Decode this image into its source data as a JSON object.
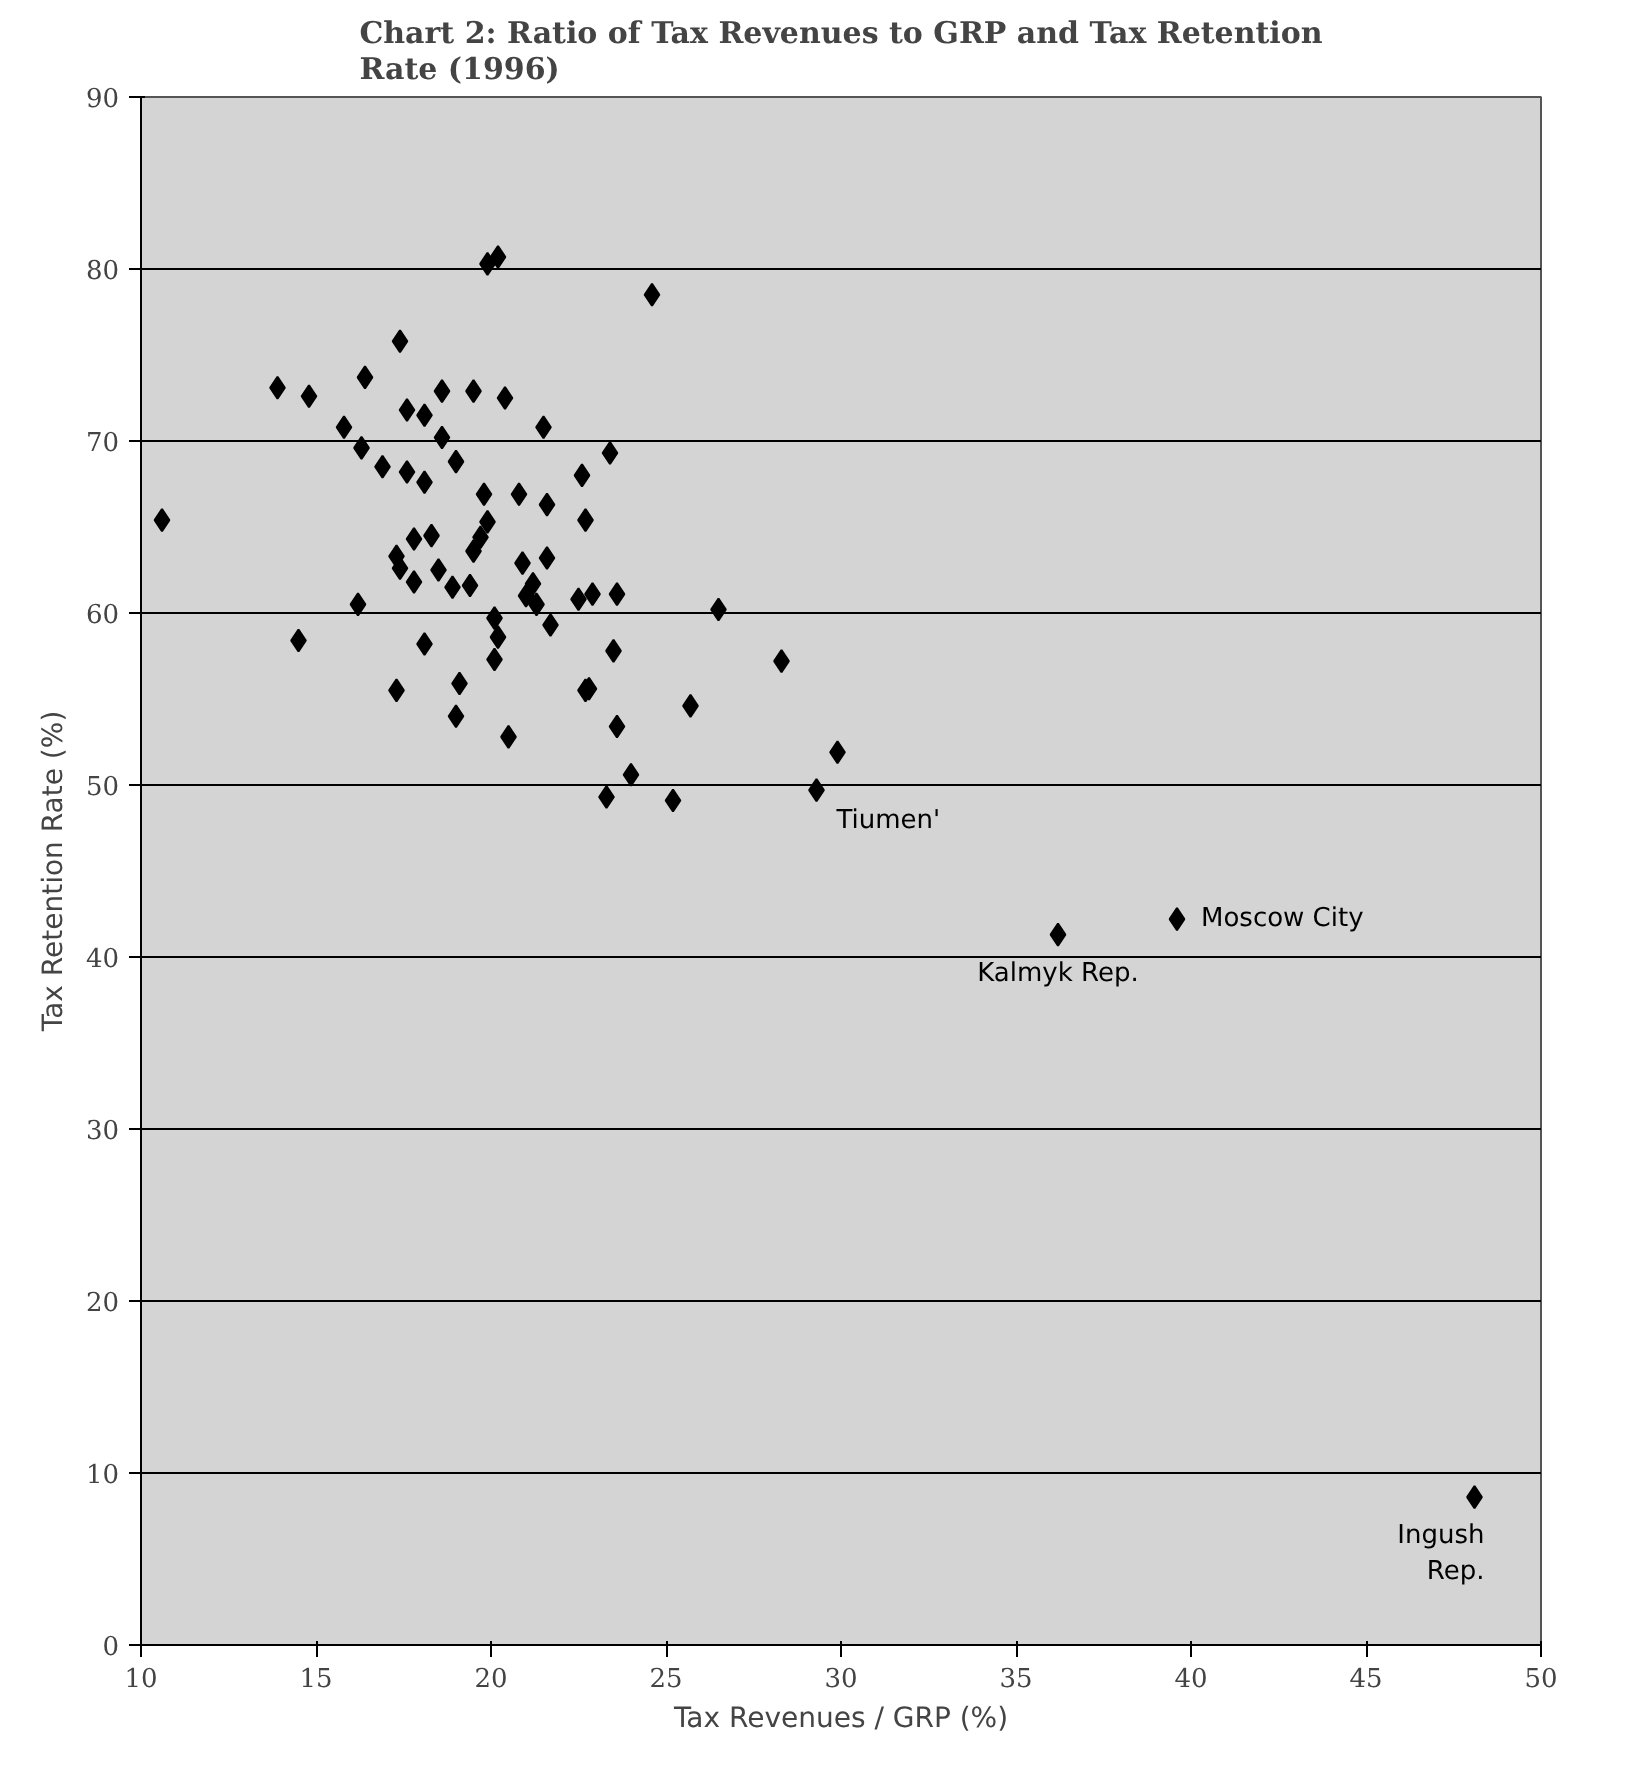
{
  "chart_data": {
    "type": "scatter",
    "title": "Chart 2: Ratio of Tax Revenues to GRP and Tax Retention\nRate (1996)",
    "xlabel": "Tax Revenues / GRP (%)",
    "ylabel": "Tax Retention Rate (%)",
    "xlim": [
      10,
      50
    ],
    "xticks": [
      10,
      15,
      20,
      25,
      30,
      35,
      40,
      45,
      50
    ],
    "ylim": [
      0,
      90
    ],
    "yticks": [
      0,
      10,
      20,
      30,
      40,
      50,
      60,
      70,
      80,
      90
    ],
    "grid": "y",
    "marker": "diamond",
    "series": [
      {
        "color": "#000000",
        "x": [
          10.6,
          19.9,
          20.2,
          17.4,
          13.9,
          14.8,
          16.4,
          15.8,
          16.3,
          16.9,
          17.6,
          18.1,
          18.6,
          19.5,
          20.4,
          18.6,
          19.0,
          17.6,
          18.1,
          21.5,
          19.8,
          20.8,
          21.6,
          19.9,
          19.7,
          17.8,
          18.3,
          19.5,
          17.3,
          17.4,
          17.8,
          18.5,
          18.9,
          19.4,
          20.9,
          21.2,
          21.6,
          16.2,
          14.5,
          18.1,
          17.3,
          19.1,
          19.0,
          20.5,
          20.1,
          20.2,
          20.1,
          21.0,
          21.3,
          21.7,
          22.7,
          24.6,
          23.4,
          22.6,
          22.7,
          22.5,
          22.9,
          23.6,
          26.5,
          23.5,
          28.3,
          22.8,
          25.7,
          23.6,
          24.0,
          23.3,
          25.2,
          29.3,
          29.9,
          36.2,
          39.6,
          48.1
        ],
        "values": [
          65.4,
          80.3,
          80.7,
          75.8,
          73.1,
          72.6,
          73.7,
          70.8,
          69.6,
          68.5,
          71.8,
          71.5,
          72.9,
          72.9,
          72.5,
          70.2,
          68.8,
          68.2,
          67.6,
          70.8,
          66.9,
          66.9,
          66.3,
          65.3,
          64.4,
          64.3,
          64.5,
          63.6,
          63.3,
          62.6,
          61.8,
          62.5,
          61.5,
          61.6,
          62.9,
          61.7,
          63.2,
          60.5,
          58.4,
          58.2,
          55.5,
          55.9,
          54.0,
          52.8,
          59.7,
          58.6,
          57.3,
          61.0,
          60.5,
          59.3,
          55.5,
          78.5,
          69.3,
          68.0,
          65.4,
          60.8,
          61.1,
          61.1,
          60.2,
          57.8,
          57.2,
          55.6,
          54.6,
          53.4,
          50.6,
          49.3,
          49.1,
          49.7,
          51.9,
          41.3,
          42.2,
          8.6
        ]
      }
    ],
    "annotations": [
      {
        "text": "Tiumen'",
        "x": 29.3,
        "y": 49.7
      },
      {
        "text": "Kalmyk Rep.",
        "x": 36.2,
        "y": 41.3
      },
      {
        "text": "Moscow City",
        "x": 39.6,
        "y": 42.2
      },
      {
        "text": "Ingush\nRep.",
        "x": 48.1,
        "y": 8.6
      }
    ]
  }
}
